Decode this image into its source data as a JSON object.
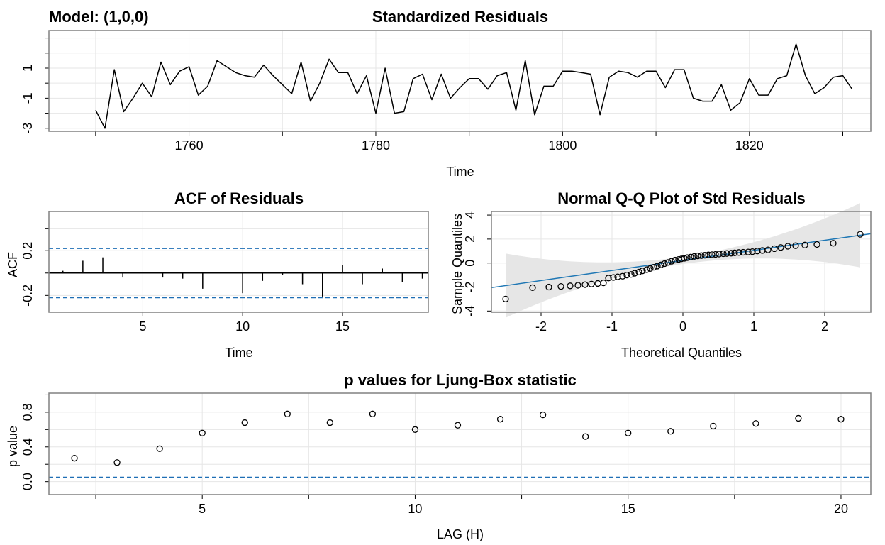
{
  "figure": {
    "model_label": "Model: (1,0,0)"
  },
  "chart_data": [
    {
      "type": "line",
      "title": "Standardized Residuals",
      "xlabel": "Time",
      "ylabel": "",
      "xlim": [
        1745,
        1833
      ],
      "ylim": [
        -3.2,
        3.5
      ],
      "xticks": [
        1760,
        1780,
        1800,
        1820
      ],
      "yticks": [
        -3,
        -1,
        1
      ],
      "grid": true,
      "x": [
        1750,
        1751,
        1752,
        1753,
        1754,
        1755,
        1756,
        1757,
        1758,
        1759,
        1760,
        1761,
        1762,
        1763,
        1764,
        1765,
        1766,
        1767,
        1768,
        1769,
        1770,
        1771,
        1772,
        1773,
        1774,
        1775,
        1776,
        1777,
        1778,
        1779,
        1780,
        1781,
        1782,
        1783,
        1784,
        1785,
        1786,
        1787,
        1788,
        1789,
        1790,
        1791,
        1792,
        1793,
        1794,
        1795,
        1796,
        1797,
        1798,
        1799,
        1800,
        1801,
        1802,
        1803,
        1804,
        1805,
        1806,
        1807,
        1808,
        1809,
        1810,
        1811,
        1812,
        1813,
        1814,
        1815,
        1816,
        1817,
        1818,
        1819,
        1820,
        1821,
        1822,
        1823,
        1824,
        1825,
        1826,
        1827,
        1828,
        1829,
        1830,
        1831
      ],
      "y": [
        -1.8,
        -3.0,
        0.9,
        -1.9,
        -1.0,
        0.0,
        -0.9,
        1.4,
        -0.1,
        0.8,
        1.1,
        -0.8,
        -0.2,
        1.5,
        1.1,
        0.7,
        0.5,
        0.4,
        1.2,
        0.5,
        -0.1,
        -0.7,
        1.4,
        -1.2,
        0.0,
        1.6,
        0.7,
        0.7,
        -0.7,
        0.5,
        -2.0,
        1.0,
        -2.0,
        -1.9,
        0.3,
        0.6,
        -1.1,
        0.6,
        -1.0,
        -0.3,
        0.3,
        0.3,
        -0.4,
        0.5,
        0.7,
        -1.8,
        1.5,
        -2.1,
        -0.2,
        -0.2,
        0.8,
        0.8,
        0.7,
        0.6,
        -2.1,
        0.4,
        0.8,
        0.7,
        0.4,
        0.8,
        0.8,
        -0.3,
        0.9,
        0.9,
        -1.0,
        -1.2,
        -1.2,
        -0.1,
        -1.8,
        -1.3,
        0.3,
        -0.8,
        -0.8,
        0.3,
        0.5,
        2.6,
        0.5,
        -0.7,
        -0.3,
        0.4,
        0.5,
        -0.4
      ]
    },
    {
      "type": "bar",
      "title": "ACF of Residuals",
      "xlabel": "Time",
      "ylabel": "ACF",
      "xlim": [
        0.3,
        19.3
      ],
      "ylim": [
        -0.35,
        0.55
      ],
      "xticks": [
        5,
        10,
        15
      ],
      "yticks": [
        -0.2,
        0.2
      ],
      "grid": true,
      "confidence_band": 0.22,
      "lags": [
        1,
        2,
        3,
        4,
        5,
        6,
        7,
        8,
        9,
        10,
        11,
        12,
        13,
        14,
        15,
        16,
        17,
        18,
        19
      ],
      "values": [
        0.02,
        0.11,
        0.14,
        -0.04,
        0.0,
        -0.04,
        -0.05,
        -0.14,
        0.01,
        -0.18,
        -0.07,
        -0.02,
        -0.1,
        -0.21,
        0.07,
        -0.1,
        0.04,
        -0.08,
        -0.05
      ]
    },
    {
      "type": "scatter",
      "title": "Normal Q-Q Plot of Std Residuals",
      "xlabel": "Theoretical Quantiles",
      "ylabel": "Sample Quantiles",
      "xlim": [
        -2.7,
        2.65
      ],
      "ylim": [
        -4.1,
        4.3
      ],
      "xticks": [
        -2,
        -1,
        0,
        1,
        2
      ],
      "yticks": [
        -4,
        -2,
        0,
        2,
        4
      ],
      "grid": true,
      "reference_line": {
        "intercept": 0.22,
        "slope": 0.84,
        "color": "#1f77b4"
      },
      "confidence_band": true,
      "theoretical": [
        -2.5,
        -2.12,
        -1.89,
        -1.72,
        -1.59,
        -1.48,
        -1.38,
        -1.29,
        -1.2,
        -1.12,
        -1.05,
        -0.98,
        -0.92,
        -0.85,
        -0.79,
        -0.73,
        -0.68,
        -0.62,
        -0.57,
        -0.51,
        -0.46,
        -0.41,
        -0.36,
        -0.31,
        -0.26,
        -0.21,
        -0.16,
        -0.11,
        -0.06,
        -0.02,
        0.02,
        0.06,
        0.11,
        0.16,
        0.21,
        0.26,
        0.31,
        0.36,
        0.41,
        0.46,
        0.51,
        0.57,
        0.62,
        0.68,
        0.73,
        0.79,
        0.85,
        0.92,
        0.98,
        1.05,
        1.12,
        1.2,
        1.29,
        1.38,
        1.48,
        1.59,
        1.72,
        1.89,
        2.12,
        2.5
      ],
      "sample": [
        -3.0,
        -2.05,
        -2.0,
        -1.95,
        -1.9,
        -1.85,
        -1.8,
        -1.75,
        -1.7,
        -1.65,
        -1.25,
        -1.2,
        -1.15,
        -1.1,
        -1.0,
        -0.95,
        -0.85,
        -0.75,
        -0.65,
        -0.55,
        -0.45,
        -0.35,
        -0.25,
        -0.15,
        -0.05,
        0.05,
        0.15,
        0.25,
        0.3,
        0.35,
        0.4,
        0.45,
        0.5,
        0.55,
        0.6,
        0.62,
        0.65,
        0.68,
        0.7,
        0.72,
        0.75,
        0.78,
        0.8,
        0.82,
        0.85,
        0.88,
        0.9,
        0.92,
        0.95,
        1.0,
        1.05,
        1.1,
        1.2,
        1.3,
        1.4,
        1.45,
        1.5,
        1.55,
        1.65,
        2.4
      ]
    },
    {
      "type": "scatter",
      "title": "p values for Ljung-Box statistic",
      "xlabel": "LAG (H)",
      "ylabel": "p value",
      "xlim": [
        1.4,
        20.7
      ],
      "ylim": [
        -0.15,
        1.02
      ],
      "xticks": [
        5,
        10,
        15,
        20
      ],
      "yticks": [
        0.0,
        0.4,
        0.8
      ],
      "ytick_labels": [
        "0.0",
        "0.4",
        "0.8"
      ],
      "grid": true,
      "significance_line": 0.05,
      "x": [
        2,
        3,
        4,
        5,
        6,
        7,
        8,
        9,
        10,
        11,
        12,
        13,
        14,
        15,
        16,
        17,
        18,
        19,
        20
      ],
      "y": [
        0.27,
        0.22,
        0.38,
        0.56,
        0.68,
        0.78,
        0.68,
        0.78,
        0.6,
        0.65,
        0.72,
        0.77,
        0.52,
        0.56,
        0.58,
        0.64,
        0.67,
        0.73,
        0.72
      ]
    }
  ]
}
